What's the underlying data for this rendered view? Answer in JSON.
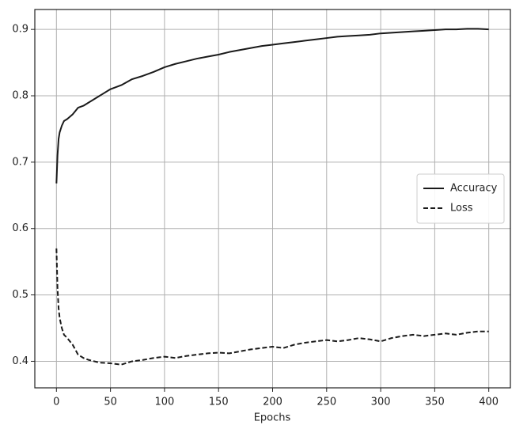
{
  "chart_data": {
    "type": "line",
    "xlabel": "Epochs",
    "x": [
      0,
      1,
      2,
      3,
      5,
      7,
      10,
      15,
      20,
      25,
      30,
      40,
      50,
      60,
      70,
      80,
      90,
      100,
      110,
      120,
      130,
      140,
      150,
      160,
      170,
      180,
      190,
      200,
      210,
      220,
      230,
      240,
      250,
      260,
      270,
      280,
      290,
      300,
      310,
      320,
      330,
      340,
      350,
      360,
      370,
      380,
      390,
      400
    ],
    "series": [
      {
        "name": "Accuracy",
        "color": "#1a1a1a",
        "dashed": false,
        "values": [
          0.668,
          0.71,
          0.735,
          0.745,
          0.755,
          0.762,
          0.765,
          0.772,
          0.782,
          0.785,
          0.79,
          0.8,
          0.81,
          0.816,
          0.825,
          0.83,
          0.836,
          0.843,
          0.848,
          0.852,
          0.856,
          0.859,
          0.862,
          0.866,
          0.869,
          0.872,
          0.875,
          0.877,
          0.879,
          0.881,
          0.883,
          0.885,
          0.887,
          0.889,
          0.89,
          0.891,
          0.892,
          0.894,
          0.895,
          0.896,
          0.897,
          0.898,
          0.899,
          0.9,
          0.9,
          0.901,
          0.901,
          0.9
        ]
      },
      {
        "name": "Loss",
        "color": "#1a1a1a",
        "dashed": true,
        "values": [
          0.57,
          0.51,
          0.48,
          0.465,
          0.45,
          0.44,
          0.435,
          0.425,
          0.41,
          0.405,
          0.402,
          0.398,
          0.397,
          0.395,
          0.4,
          0.402,
          0.405,
          0.407,
          0.405,
          0.408,
          0.41,
          0.412,
          0.413,
          0.412,
          0.415,
          0.418,
          0.42,
          0.422,
          0.42,
          0.425,
          0.428,
          0.43,
          0.432,
          0.43,
          0.432,
          0.435,
          0.433,
          0.43,
          0.435,
          0.438,
          0.44,
          0.438,
          0.44,
          0.442,
          0.44,
          0.443,
          0.445,
          0.445
        ]
      }
    ],
    "xlim": [
      -20,
      420
    ],
    "xticks": [
      0,
      50,
      100,
      150,
      200,
      250,
      300,
      350,
      400
    ],
    "ylim": [
      0.36,
      0.93
    ],
    "yticks": [
      0.4,
      0.5,
      0.6,
      0.7,
      0.8,
      0.9
    ],
    "grid": true,
    "legend": "center right"
  }
}
